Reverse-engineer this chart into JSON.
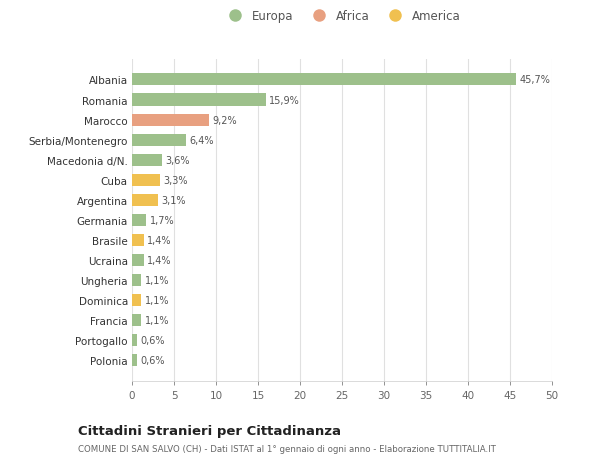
{
  "categories": [
    "Polonia",
    "Portogallo",
    "Francia",
    "Dominica",
    "Ungheria",
    "Ucraina",
    "Brasile",
    "Germania",
    "Argentina",
    "Cuba",
    "Macedonia d/N.",
    "Serbia/Montenegro",
    "Marocco",
    "Romania",
    "Albania"
  ],
  "values": [
    0.6,
    0.6,
    1.1,
    1.1,
    1.1,
    1.4,
    1.4,
    1.7,
    3.1,
    3.3,
    3.6,
    6.4,
    9.2,
    15.9,
    45.7
  ],
  "labels": [
    "0,6%",
    "0,6%",
    "1,1%",
    "1,1%",
    "1,1%",
    "1,4%",
    "1,4%",
    "1,7%",
    "3,1%",
    "3,3%",
    "3,6%",
    "6,4%",
    "9,2%",
    "15,9%",
    "45,7%"
  ],
  "continents": [
    "Europa",
    "Europa",
    "Europa",
    "America",
    "Europa",
    "Europa",
    "America",
    "Europa",
    "America",
    "America",
    "Europa",
    "Europa",
    "Africa",
    "Europa",
    "Europa"
  ],
  "colors": {
    "Europa": "#9dc08b",
    "Africa": "#e8a080",
    "America": "#f0c050"
  },
  "legend_items": [
    "Europa",
    "Africa",
    "America"
  ],
  "xlim": [
    0,
    50
  ],
  "xticks": [
    0,
    5,
    10,
    15,
    20,
    25,
    30,
    35,
    40,
    45,
    50
  ],
  "title_main": "Cittadini Stranieri per Cittadinanza",
  "title_sub": "COMUNE DI SAN SALVO (CH) - Dati ISTAT al 1° gennaio di ogni anno - Elaborazione TUTTITALIA.IT",
  "bg_color": "#ffffff",
  "grid_color": "#e0e0e0",
  "bar_height": 0.6
}
